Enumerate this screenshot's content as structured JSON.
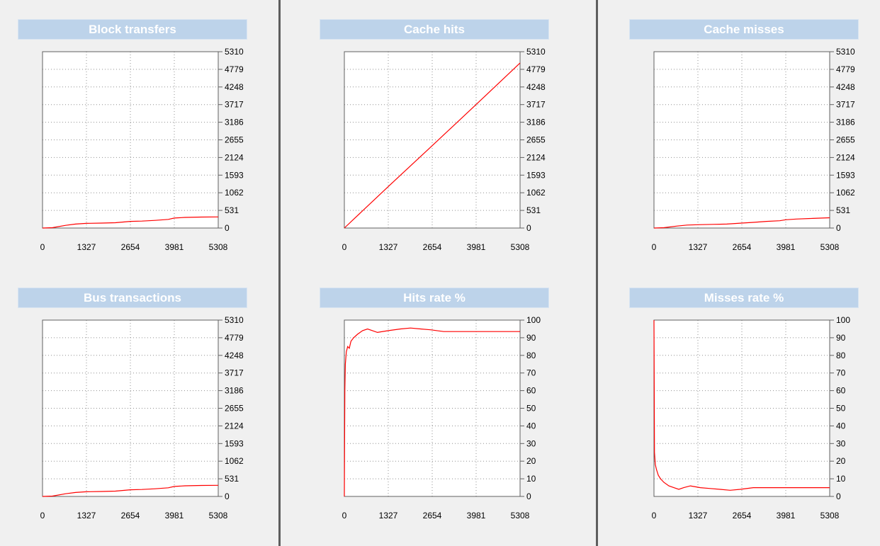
{
  "colors": {
    "line": "#ff0000",
    "title_bg": "#bdd3ea",
    "background": "#f0f0f0"
  },
  "chart_data": [
    {
      "type": "line",
      "title": "Block transfers",
      "x_ticks": [
        "0",
        "1327",
        "2654",
        "3981",
        "5308"
      ],
      "y_ticks": [
        "0",
        "531",
        "1062",
        "1593",
        "2124",
        "2655",
        "3186",
        "3717",
        "4248",
        "4779",
        "5310"
      ],
      "xlim": [
        0,
        5308
      ],
      "ylim": [
        0,
        5310
      ],
      "grid": true,
      "series": [
        {
          "x": [
            0,
            300,
            700,
            1000,
            1327,
            1800,
            2200,
            2654,
            3000,
            3400,
            3800,
            3981,
            4300,
            4800,
            5308
          ],
          "y": [
            0,
            10,
            80,
            120,
            140,
            150,
            160,
            200,
            210,
            230,
            260,
            300,
            320,
            330,
            335
          ]
        }
      ]
    },
    {
      "type": "line",
      "title": "Cache hits",
      "x_ticks": [
        "0",
        "1327",
        "2654",
        "3981",
        "5308"
      ],
      "y_ticks": [
        "0",
        "531",
        "1062",
        "1593",
        "2124",
        "2655",
        "3186",
        "3717",
        "4248",
        "4779",
        "5310"
      ],
      "xlim": [
        0,
        5308
      ],
      "ylim": [
        0,
        5310
      ],
      "grid": true,
      "series": [
        {
          "x": [
            0,
            1327,
            2654,
            3981,
            5308
          ],
          "y": [
            0,
            1250,
            2480,
            3720,
            4970
          ]
        }
      ]
    },
    {
      "type": "line",
      "title": "Cache misses",
      "x_ticks": [
        "0",
        "1327",
        "2654",
        "3981",
        "5308"
      ],
      "y_ticks": [
        "0",
        "531",
        "1062",
        "1593",
        "2124",
        "2655",
        "3186",
        "3717",
        "4248",
        "4779",
        "5310"
      ],
      "xlim": [
        0,
        5308
      ],
      "ylim": [
        0,
        5310
      ],
      "grid": true,
      "series": [
        {
          "x": [
            0,
            300,
            700,
            1000,
            1327,
            1800,
            2200,
            2654,
            3000,
            3400,
            3800,
            3981,
            4300,
            4800,
            5308
          ],
          "y": [
            0,
            10,
            60,
            90,
            100,
            110,
            120,
            150,
            170,
            200,
            220,
            250,
            270,
            290,
            310
          ]
        }
      ]
    },
    {
      "type": "line",
      "title": "Bus transactions",
      "x_ticks": [
        "0",
        "1327",
        "2654",
        "3981",
        "5308"
      ],
      "y_ticks": [
        "0",
        "531",
        "1062",
        "1593",
        "2124",
        "2655",
        "3186",
        "3717",
        "4248",
        "4779",
        "5310"
      ],
      "xlim": [
        0,
        5308
      ],
      "ylim": [
        0,
        5310
      ],
      "grid": true,
      "series": [
        {
          "x": [
            0,
            300,
            700,
            1000,
            1327,
            1800,
            2200,
            2654,
            3000,
            3400,
            3800,
            3981,
            4300,
            4800,
            5308
          ],
          "y": [
            0,
            10,
            80,
            120,
            140,
            150,
            160,
            200,
            210,
            230,
            260,
            300,
            320,
            330,
            335
          ]
        }
      ]
    },
    {
      "type": "line",
      "title": "Hits rate %",
      "x_ticks": [
        "0",
        "1327",
        "2654",
        "3981",
        "5308"
      ],
      "y_ticks": [
        "0",
        "10",
        "20",
        "30",
        "40",
        "50",
        "60",
        "70",
        "80",
        "90",
        "100"
      ],
      "xlim": [
        0,
        5308
      ],
      "ylim": [
        0,
        100
      ],
      "grid": true,
      "series": [
        {
          "x": [
            0,
            15,
            30,
            60,
            100,
            150,
            200,
            280,
            400,
            550,
            700,
            850,
            1000,
            1327,
            1700,
            2000,
            2300,
            2600,
            3000,
            5308
          ],
          "y": [
            0,
            60,
            75,
            82,
            85,
            84,
            88,
            90,
            92,
            94,
            95,
            94,
            93,
            94,
            95,
            95.5,
            95,
            94.5,
            93.5,
            93.5
          ]
        }
      ]
    },
    {
      "type": "line",
      "title": "Misses rate %",
      "x_ticks": [
        "0",
        "1327",
        "2654",
        "3981",
        "5308"
      ],
      "y_ticks": [
        "0",
        "10",
        "20",
        "30",
        "40",
        "50",
        "60",
        "70",
        "80",
        "90",
        "100"
      ],
      "xlim": [
        0,
        5308
      ],
      "ylim": [
        0,
        100
      ],
      "grid": true,
      "series": [
        {
          "x": [
            0,
            15,
            40,
            80,
            130,
            200,
            300,
            450,
            600,
            750,
            900,
            1100,
            1400,
            1700,
            2000,
            2300,
            2600,
            3000,
            5308
          ],
          "y": [
            100,
            25,
            18,
            15,
            12,
            10,
            8,
            6,
            5,
            4,
            5,
            6,
            5,
            4.5,
            4,
            3.5,
            4,
            5,
            5
          ]
        }
      ]
    }
  ]
}
